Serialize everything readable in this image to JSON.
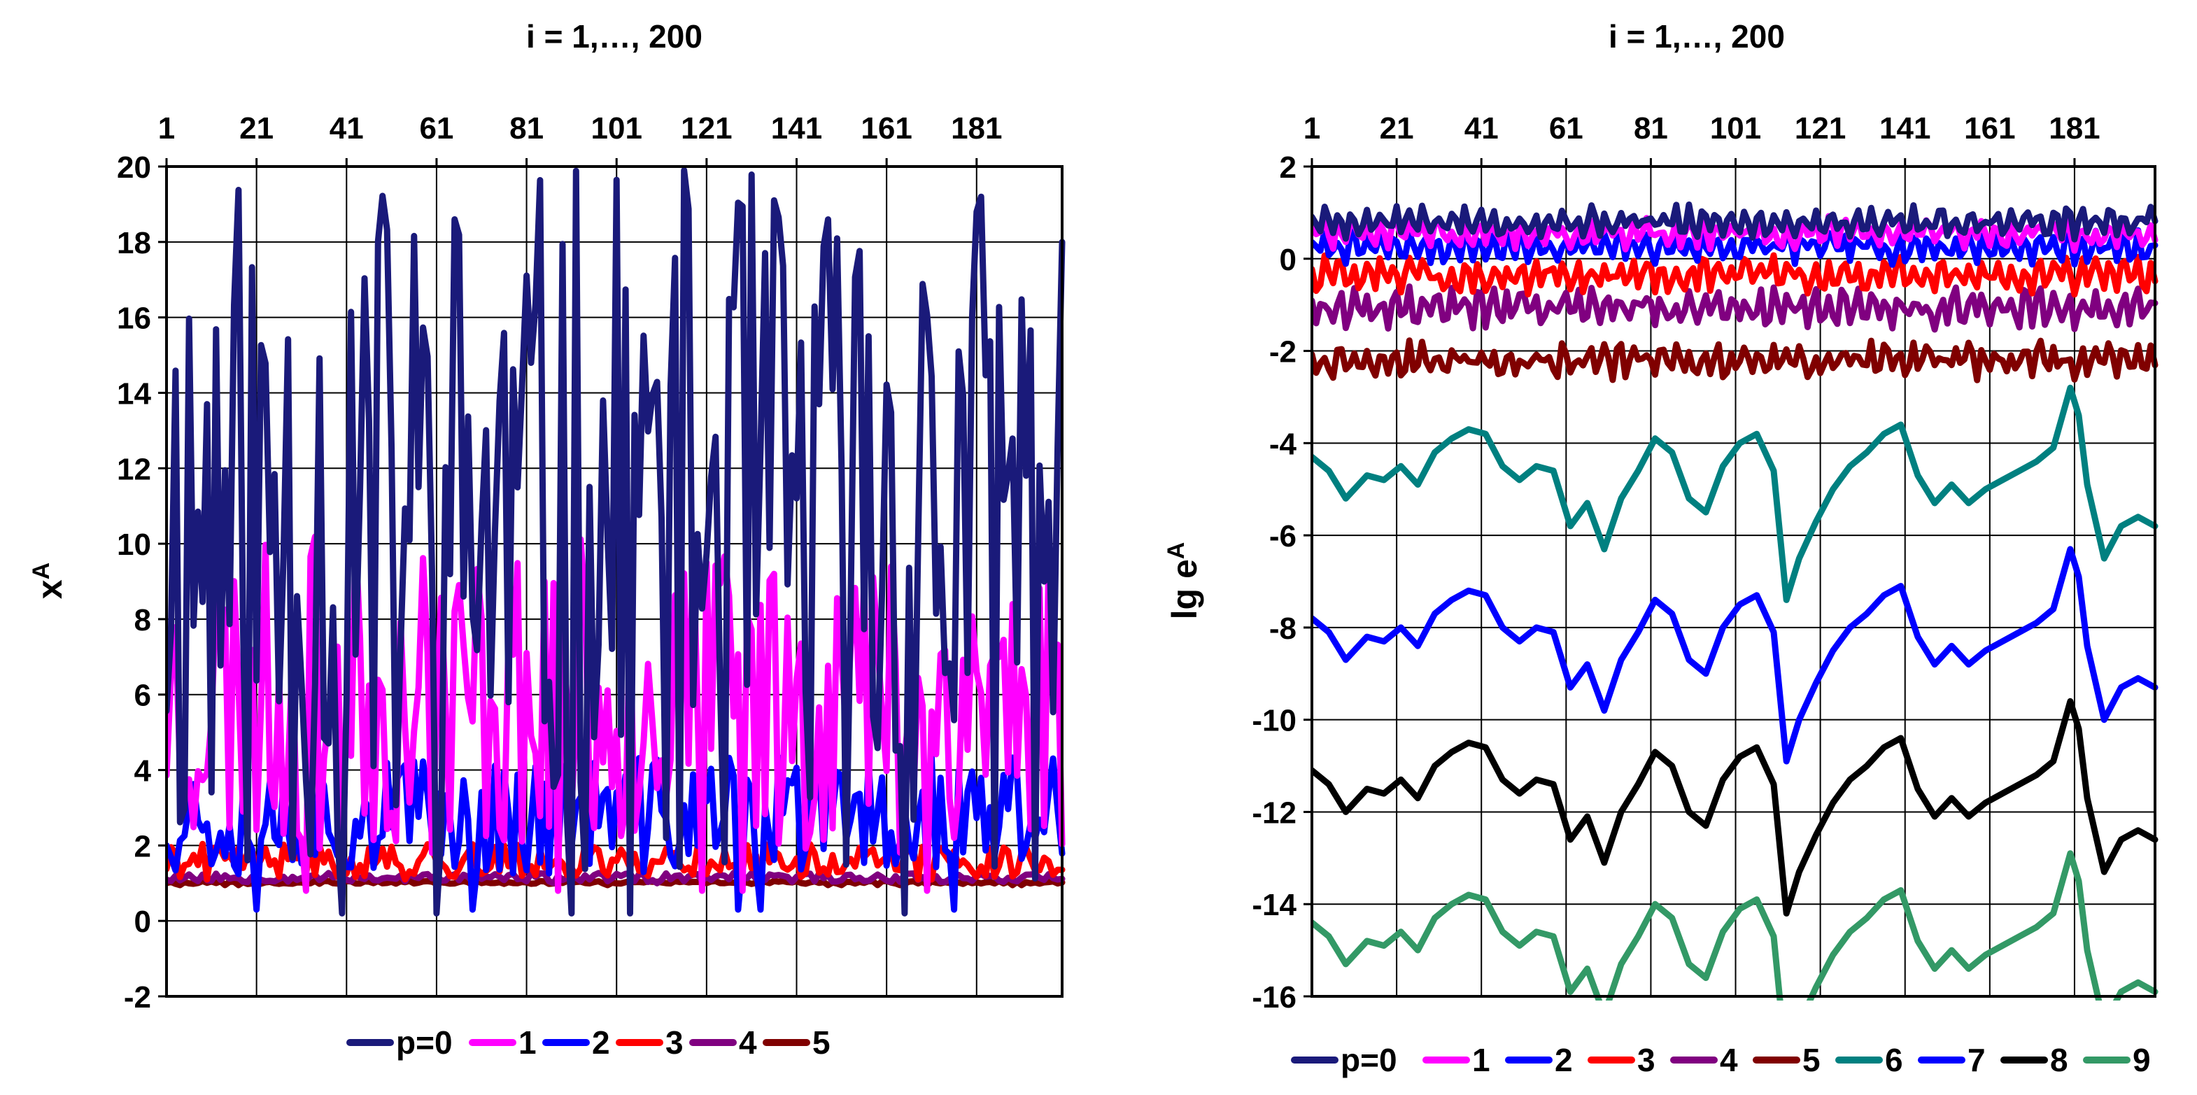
{
  "chart_data": [
    {
      "type": "line",
      "title": "i = 1,…, 200",
      "xlabel": "",
      "ylabel": "x",
      "ylabel_sup": "A",
      "xlim": [
        1,
        200
      ],
      "ylim": [
        -2,
        20
      ],
      "x_ticks": [
        "1",
        "21",
        "41",
        "61",
        "81",
        "101",
        "121",
        "141",
        "161",
        "181"
      ],
      "y_ticks": [
        "20",
        "18",
        "16",
        "14",
        "12",
        "10",
        "8",
        "6",
        "4",
        "2",
        "0",
        "-2"
      ],
      "legend_position": "bottom",
      "series": [
        {
          "name": "p=0",
          "color": "#1a1a7a",
          "kind": "chaotic",
          "base": 10.5,
          "amp": 9.5,
          "lo": 0.2,
          "hi": 19.9,
          "seed": 11
        },
        {
          "name": "1",
          "color": "#ff00ff",
          "kind": "chaotic",
          "base": 6.0,
          "amp": 4.2,
          "lo": 0.8,
          "hi": 10.5,
          "seed": 23
        },
        {
          "name": "2",
          "color": "#0000ff",
          "kind": "chaotic",
          "base": 2.8,
          "amp": 1.6,
          "lo": 0.3,
          "hi": 4.6,
          "seed": 37
        },
        {
          "name": "3",
          "color": "#ff0000",
          "kind": "chaotic",
          "base": 1.6,
          "amp": 0.45,
          "lo": 1.1,
          "hi": 2.3,
          "seed": 41
        },
        {
          "name": "4",
          "color": "#800080",
          "kind": "chaotic",
          "base": 1.15,
          "amp": 0.12,
          "lo": 1.0,
          "hi": 1.3,
          "seed": 53
        },
        {
          "name": "5",
          "color": "#800000",
          "kind": "chaotic",
          "base": 1.02,
          "amp": 0.04,
          "lo": 0.95,
          "hi": 1.1,
          "seed": 67
        }
      ]
    },
    {
      "type": "line",
      "title": "i = 1,…, 200",
      "xlabel": "",
      "ylabel": "lg e",
      "ylabel_sup": "A",
      "xlim": [
        1,
        200
      ],
      "ylim": [
        -16,
        2
      ],
      "x_ticks": [
        "1",
        "21",
        "41",
        "61",
        "81",
        "101",
        "121",
        "141",
        "161",
        "181"
      ],
      "y_ticks": [
        "2",
        "0",
        "-2",
        "-4",
        "-6",
        "-8",
        "-10",
        "-12",
        "-14",
        "-16"
      ],
      "legend_position": "bottom",
      "series": [
        {
          "name": "p=0",
          "color": "#1a1a7a",
          "kind": "jagged",
          "base": 0.8,
          "amp": 0.35,
          "seed": 5
        },
        {
          "name": "1",
          "color": "#ff00ff",
          "kind": "jagged",
          "base": 0.55,
          "amp": 0.35,
          "seed": 6
        },
        {
          "name": "2",
          "color": "#0000ff",
          "kind": "jagged",
          "base": 0.25,
          "amp": 0.35,
          "seed": 7
        },
        {
          "name": "3",
          "color": "#ff0000",
          "kind": "jagged",
          "base": -0.35,
          "amp": 0.4,
          "seed": 8
        },
        {
          "name": "4",
          "color": "#800080",
          "kind": "jagged",
          "base": -1.05,
          "amp": 0.45,
          "seed": 9
        },
        {
          "name": "5",
          "color": "#800000",
          "kind": "jagged",
          "base": -2.2,
          "amp": 0.4,
          "seed": 10
        },
        {
          "name": "6",
          "color": "#008080",
          "kind": "smooth",
          "offset": -4.3
        },
        {
          "name": "7",
          "color": "#0000ff",
          "kind": "smooth",
          "offset": -7.8
        },
        {
          "name": "8",
          "color": "#000000",
          "kind": "smooth",
          "offset": -11.1
        },
        {
          "name": "9",
          "color": "#339966",
          "kind": "smooth",
          "offset": -14.4
        }
      ],
      "smooth_profile": {
        "x": [
          1,
          5,
          9,
          14,
          18,
          22,
          26,
          30,
          34,
          38,
          42,
          46,
          50,
          54,
          58,
          62,
          66,
          70,
          74,
          78,
          82,
          86,
          90,
          94,
          98,
          102,
          106,
          110,
          113,
          116,
          120,
          124,
          128,
          132,
          136,
          140,
          144,
          148,
          152,
          156,
          160,
          164,
          168,
          172,
          176,
          180,
          182,
          184,
          188,
          192,
          196,
          200
        ],
        "y": [
          0,
          -0.3,
          -0.9,
          -0.4,
          -0.5,
          -0.2,
          -0.6,
          0.1,
          0.4,
          0.6,
          0.5,
          -0.2,
          -0.5,
          -0.2,
          -0.3,
          -1.5,
          -1.0,
          -2.0,
          -0.9,
          -0.3,
          0.4,
          0.1,
          -0.9,
          -1.2,
          -0.2,
          0.3,
          0.5,
          -0.3,
          -3.1,
          -2.2,
          -1.4,
          -0.7,
          -0.2,
          0.1,
          0.5,
          0.7,
          -0.4,
          -1.0,
          -0.6,
          -1.0,
          -0.7,
          -0.5,
          -0.3,
          -0.1,
          0.2,
          1.5,
          0.9,
          -0.6,
          -2.2,
          -1.5,
          -1.3,
          -1.5
        ]
      }
    }
  ]
}
